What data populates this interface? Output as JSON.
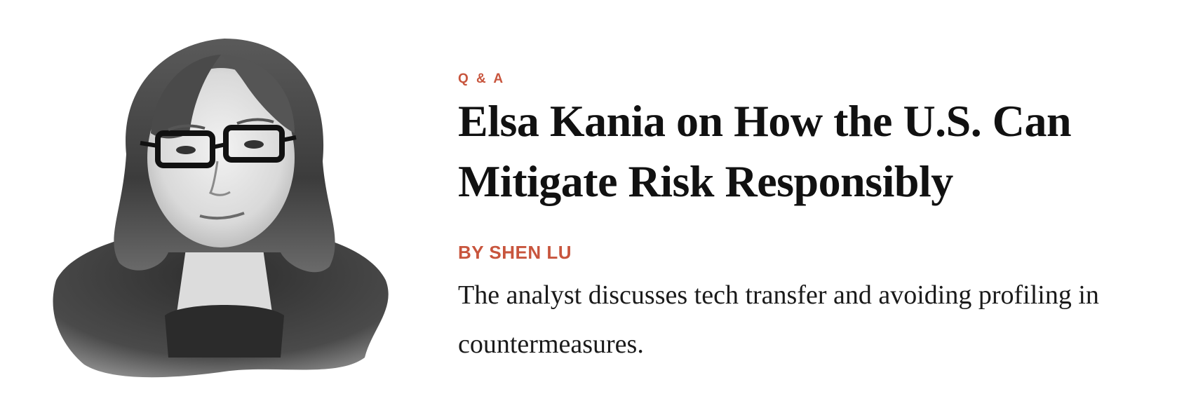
{
  "article": {
    "kicker": "Q & A",
    "headline": "Elsa Kania on How the U.S. Can Mitigate Risk Responsibly",
    "byline": "BY SHEN LU",
    "dek": "The analyst discusses tech transfer and avoiding profiling in countermeasures."
  },
  "colors": {
    "accent": "#c8553d",
    "text": "#111111",
    "background": "#ffffff"
  }
}
